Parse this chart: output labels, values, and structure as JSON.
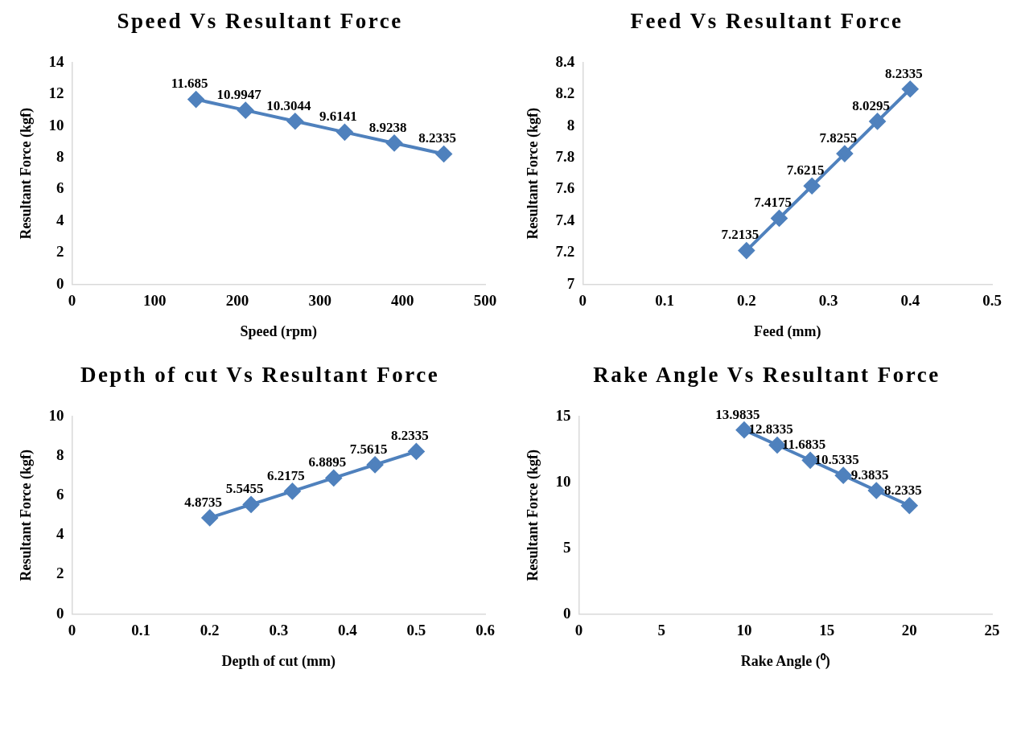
{
  "chart_data": [
    {
      "type": "line",
      "title": "Speed Vs Resultant Force",
      "xlabel": "Speed (rpm)",
      "ylabel": "Resultant Force (kgf)",
      "x": [
        150,
        210,
        270,
        330,
        390,
        450
      ],
      "values": [
        11.685,
        10.9947,
        10.3044,
        9.6141,
        8.9238,
        8.2335
      ],
      "color": "#4f81bd",
      "xlim": [
        0,
        500
      ],
      "xticks": [
        0,
        100,
        200,
        300,
        400,
        500
      ],
      "ylim": [
        0,
        14
      ],
      "yticks": [
        0,
        2,
        4,
        6,
        8,
        10,
        12,
        14
      ],
      "marker": "diamond",
      "data_labels": true,
      "grid": false
    },
    {
      "type": "line",
      "title": "Feed Vs Resultant Force",
      "xlabel": "Feed (mm)",
      "ylabel": "Resultant Force (kgf)",
      "x": [
        0.2,
        0.24,
        0.28,
        0.32,
        0.36,
        0.4
      ],
      "values": [
        7.2135,
        7.4175,
        7.6215,
        7.8255,
        8.0295,
        8.2335
      ],
      "color": "#4f81bd",
      "xlim": [
        0,
        0.5
      ],
      "xticks": [
        0,
        0.1,
        0.2,
        0.3,
        0.4,
        0.5
      ],
      "ylim": [
        7,
        8.4
      ],
      "yticks": [
        7,
        7.2,
        7.4,
        7.6,
        7.8,
        8,
        8.2,
        8.4
      ],
      "marker": "diamond",
      "data_labels": true,
      "grid": false
    },
    {
      "type": "line",
      "title": "Depth of cut Vs Resultant Force",
      "xlabel": "Depth of cut (mm)",
      "ylabel": "Resultant Force (kgf)",
      "x": [
        0.2,
        0.26,
        0.32,
        0.38,
        0.44,
        0.5
      ],
      "values": [
        4.8735,
        5.5455,
        6.2175,
        6.8895,
        7.5615,
        8.2335
      ],
      "color": "#4f81bd",
      "xlim": [
        0,
        0.6
      ],
      "xticks": [
        0,
        0.1,
        0.2,
        0.3,
        0.4,
        0.5,
        0.6
      ],
      "ylim": [
        0,
        10
      ],
      "yticks": [
        0,
        2,
        4,
        6,
        8,
        10
      ],
      "marker": "diamond",
      "data_labels": true,
      "grid": false
    },
    {
      "type": "line",
      "title": "Rake Angle Vs Resultant Force",
      "xlabel": "Rake Angle (⁰)",
      "ylabel": "Resultant Force (kgf)",
      "x": [
        10,
        12,
        14,
        16,
        18,
        20
      ],
      "values": [
        13.9835,
        12.8335,
        11.6835,
        10.5335,
        9.3835,
        8.2335
      ],
      "color": "#4f81bd",
      "xlim": [
        0,
        25
      ],
      "xticks": [
        0,
        5,
        10,
        15,
        20,
        25
      ],
      "ylim": [
        0,
        15
      ],
      "yticks": [
        0,
        5,
        10,
        15
      ],
      "marker": "diamond",
      "data_labels": true,
      "grid": false
    }
  ]
}
